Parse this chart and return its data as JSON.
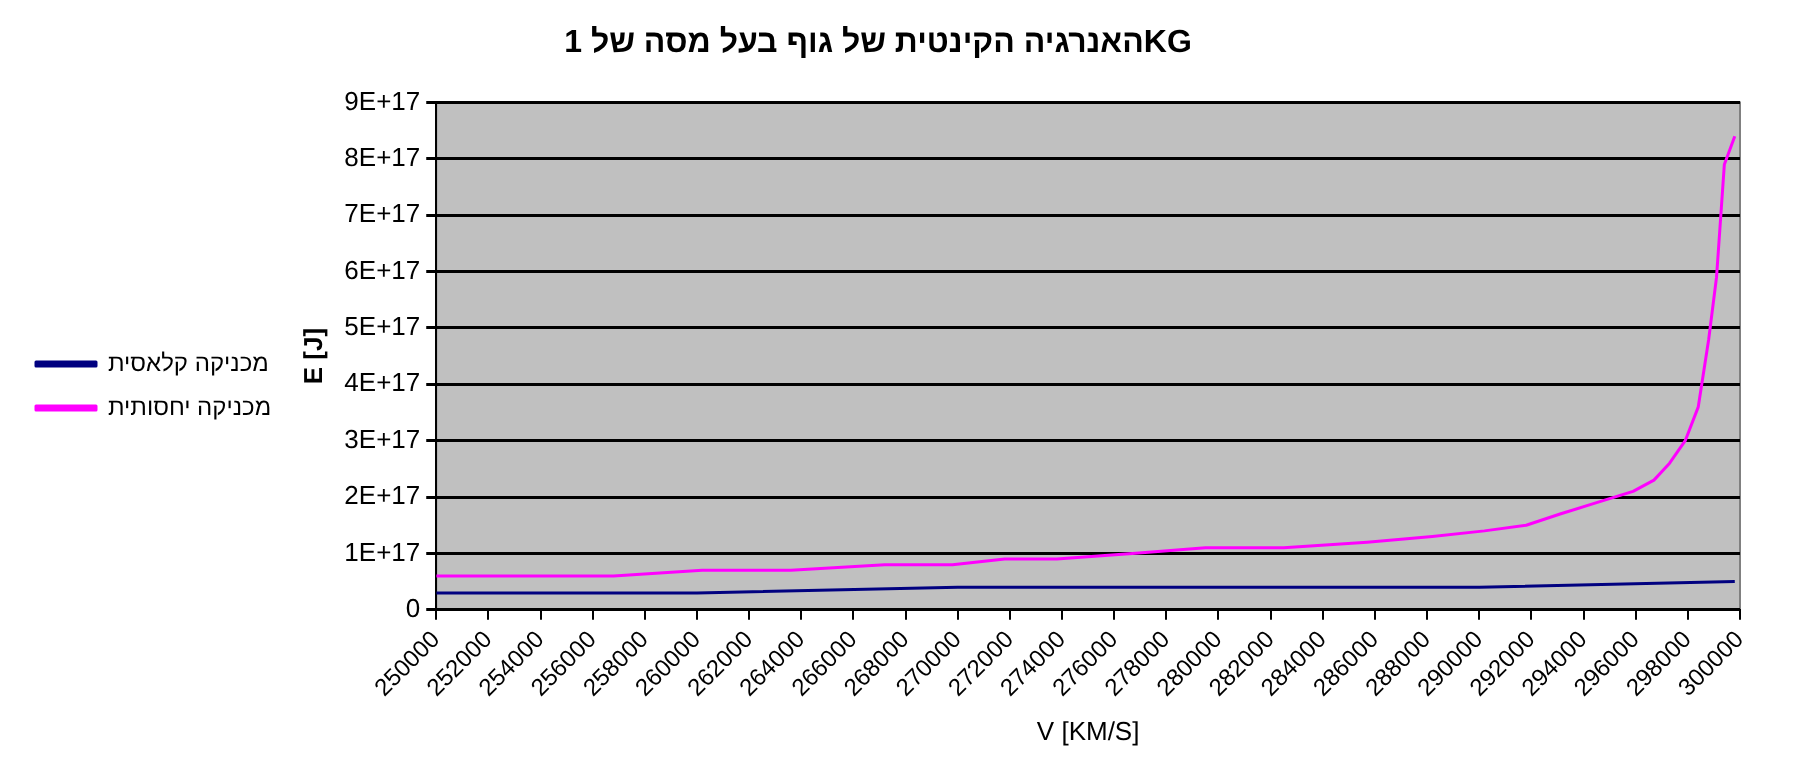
{
  "chart_data": {
    "type": "line",
    "title": "האנרגיה הקינטית של גוף בעל מסה של 1KG",
    "xlabel": "V [KM/S]",
    "ylabel": "E [J]",
    "xlim": [
      250000,
      300000
    ],
    "xticks": [
      250000,
      252000,
      254000,
      256000,
      258000,
      260000,
      262000,
      264000,
      266000,
      268000,
      270000,
      272000,
      274000,
      276000,
      278000,
      280000,
      282000,
      284000,
      286000,
      288000,
      290000,
      292000,
      294000,
      296000,
      298000,
      300000
    ],
    "ylim": [
      0,
      9e+17
    ],
    "yticks": [
      0,
      {
        "value": 1e+17,
        "label": "1E+17"
      },
      {
        "value": 2e+17,
        "label": "2E+17"
      },
      {
        "value": 3e+17,
        "label": "3E+17"
      },
      {
        "value": 4e+17,
        "label": "4E+17"
      },
      {
        "value": 5e+17,
        "label": "5E+17"
      },
      {
        "value": 6e+17,
        "label": "6E+17"
      },
      {
        "value": 7e+17,
        "label": "7E+17"
      },
      {
        "value": 8e+17,
        "label": "8E+17"
      },
      {
        "value": 9e+17,
        "label": "9E+17"
      }
    ],
    "grid": "y",
    "legend": "left",
    "marker": "none",
    "line_style": "solid",
    "series": [
      {
        "name": "מכניקה קלאסית",
        "color": "#000080",
        "x": [
          250000,
          260000,
          270000,
          280000,
          290000,
          299800
        ],
        "values": [
          3e+16,
          3e+16,
          4e+16,
          4e+16,
          4e+16,
          5e+16
        ]
      },
      {
        "name": "מכניקה יחסותית",
        "color": "#ff00ff",
        "x": [
          250000,
          254000,
          256800,
          260200,
          263600,
          267200,
          269800,
          271800,
          273800,
          276700,
          279500,
          282500,
          285700,
          288200,
          290200,
          291800,
          293100,
          294500,
          295900,
          296700,
          297300,
          297900,
          298400,
          298800,
          299100,
          299400,
          299800
        ],
        "values": [
          6e+16,
          6e+16,
          6e+16,
          7e+16,
          7e+16,
          8e+16,
          8e+16,
          9e+16,
          9e+16,
          1e+17,
          1.1e+17,
          1.1e+17,
          1.2e+17,
          1.3e+17,
          1.4e+17,
          1.5e+17,
          1.7e+17,
          1.9e+17,
          2.1e+17,
          2.3e+17,
          2.6e+17,
          3e+17,
          3.6e+17,
          4.8e+17,
          5.9e+17,
          7.9e+17,
          8.4e+17
        ]
      }
    ]
  }
}
